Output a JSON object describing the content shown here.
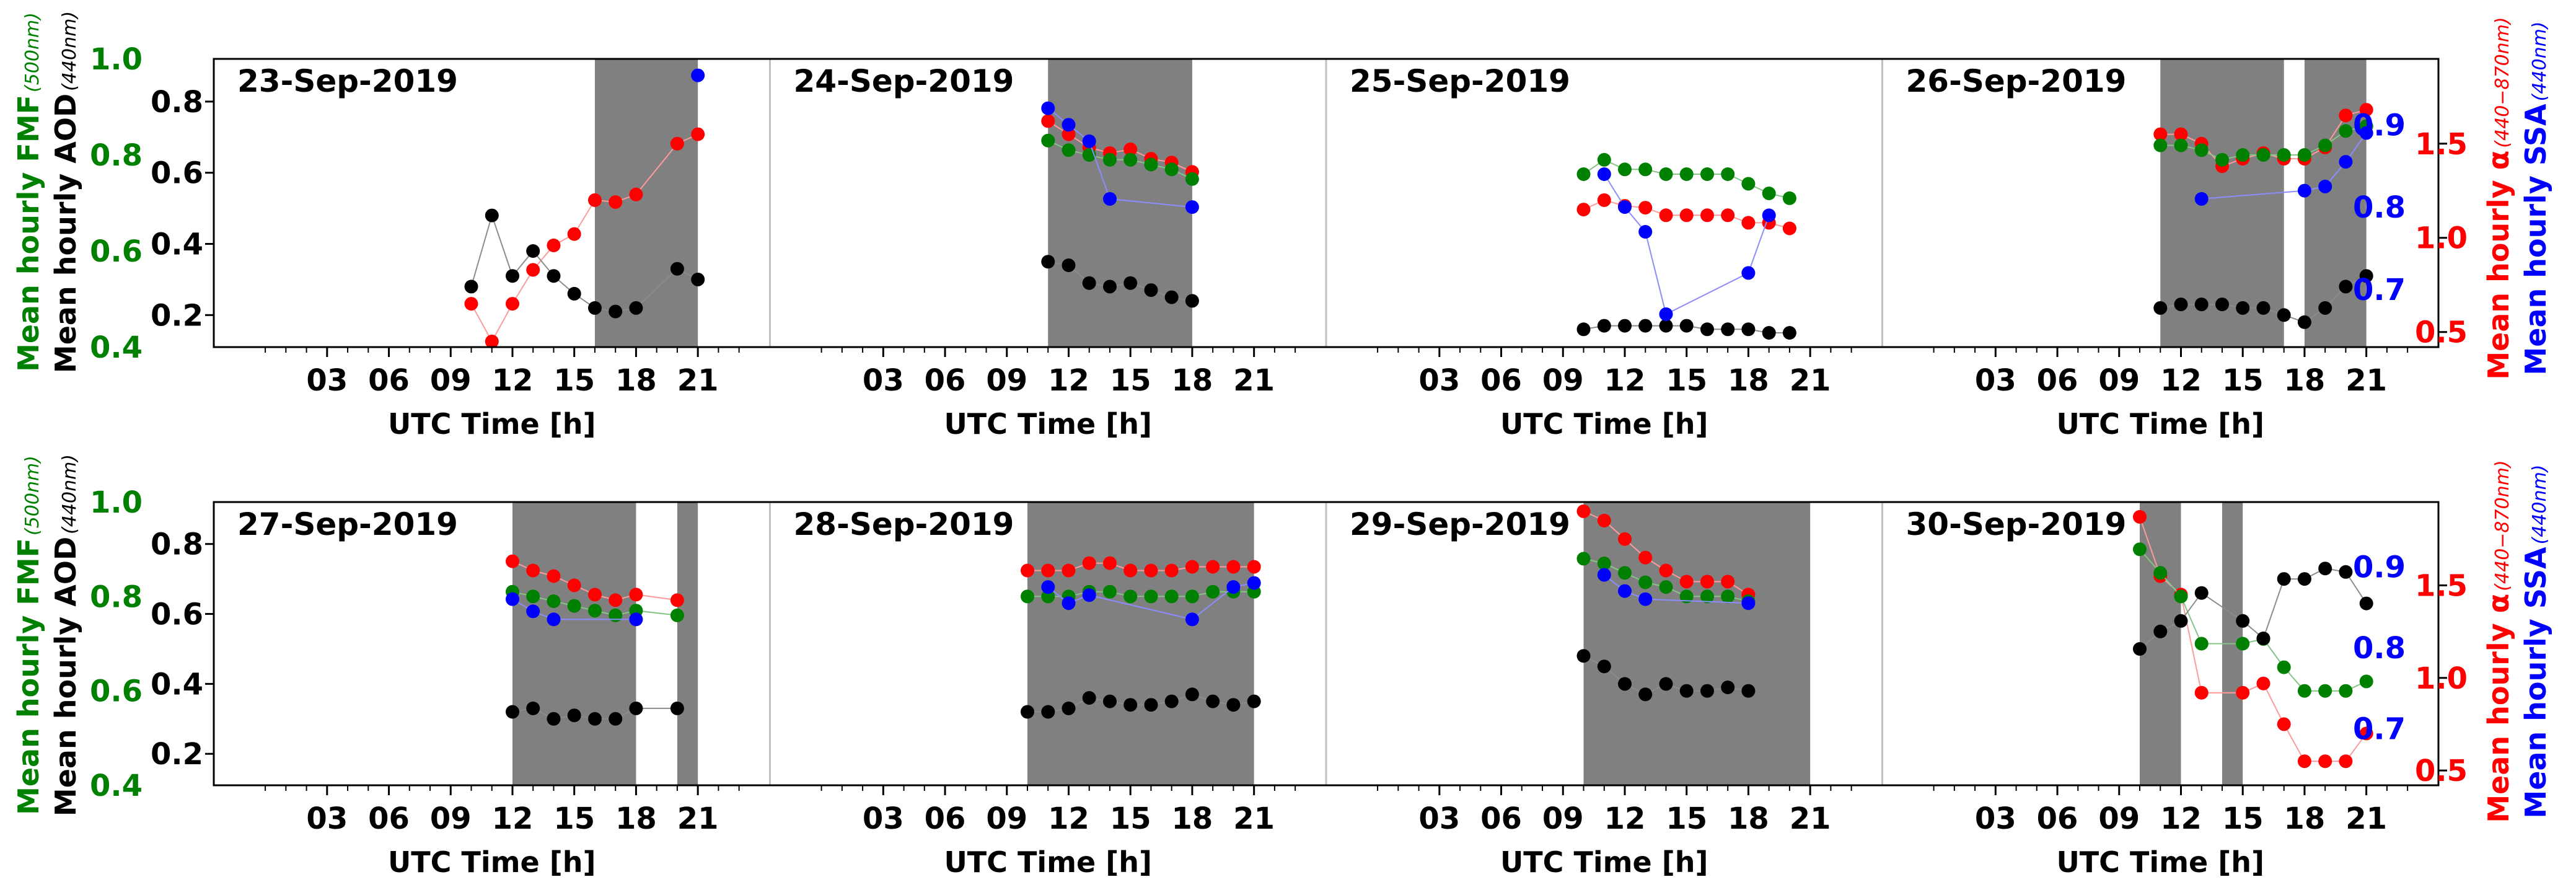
{
  "colors": {
    "fmf": "#008000",
    "aod": "#000000",
    "alpha": "#ff0000",
    "ssa": "#0000ff",
    "night": "#808080",
    "separator": "#c0c0c0",
    "axis": "#000000"
  },
  "chart_data": {
    "type": "scatter",
    "title": "",
    "x_label": "UTC Time [h]",
    "x_ticks": [
      "03",
      "06",
      "09",
      "12",
      "15",
      "18",
      "21"
    ],
    "x_range": [
      -2.5,
      24.5
    ],
    "left_axes": {
      "fmf": {
        "label": "Mean hourly FMF",
        "subscript": "(500nm)",
        "range": [
          0.4,
          1.0
        ],
        "ticks": [
          "0.4",
          "0.6",
          "0.8",
          "1.0"
        ]
      },
      "aod": {
        "label": "Mean hourly AOD",
        "subscript": "(440nm)",
        "range": [
          0.11,
          0.92
        ],
        "ticks": [
          "0.2",
          "0.4",
          "0.6",
          "0.8"
        ]
      }
    },
    "right_axes": {
      "alpha": {
        "label": "Mean hourly α",
        "subscript": "(440−870nm)",
        "range": [
          0.42,
          1.95
        ],
        "ticks": [
          "0.5",
          "1.0",
          "1.5"
        ]
      },
      "ssa": {
        "label": "Mean hourly SSA",
        "subscript": "(440nm)",
        "range": [
          0.63,
          0.98
        ],
        "ticks": [
          "0.7",
          "0.8",
          "0.9"
        ]
      }
    },
    "rows": [
      {
        "panels": [
          {
            "date": "23-Sep-2019",
            "shaded": [
              [
                16,
                21
              ]
            ],
            "hours": [
              10,
              11,
              12,
              13,
              14,
              15,
              16,
              17,
              18,
              20,
              21
            ],
            "fmf": [
              null,
              null,
              null,
              null,
              null,
              null,
              null,
              null,
              null,
              null,
              null
            ],
            "aod": [
              0.28,
              0.48,
              0.31,
              0.38,
              0.31,
              0.26,
              0.22,
              0.21,
              0.22,
              0.33,
              0.3
            ],
            "alpha": [
              0.65,
              0.45,
              0.65,
              0.83,
              0.96,
              1.02,
              1.2,
              1.19,
              1.23,
              1.5,
              1.55
            ],
            "ssa": [
              null,
              null,
              null,
              null,
              null,
              null,
              null,
              null,
              null,
              null,
              0.96
            ]
          },
          {
            "date": "24-Sep-2019",
            "shaded": [
              [
                11,
                18
              ]
            ],
            "hours": [
              11,
              12,
              13,
              14,
              15,
              16,
              17,
              18
            ],
            "fmf": [
              0.83,
              0.81,
              0.8,
              0.79,
              0.79,
              0.78,
              0.77,
              0.75
            ],
            "aod": [
              0.35,
              0.34,
              0.29,
              0.28,
              0.29,
              0.27,
              0.25,
              0.24
            ],
            "alpha": [
              1.62,
              1.55,
              1.48,
              1.45,
              1.47,
              1.42,
              1.4,
              1.35
            ],
            "ssa": [
              0.92,
              0.9,
              0.88,
              0.81,
              null,
              null,
              null,
              0.8
            ]
          },
          {
            "date": "25-Sep-2019",
            "shaded": [],
            "hours": [
              10,
              11,
              12,
              13,
              14,
              15,
              16,
              17,
              18,
              19,
              20
            ],
            "fmf": [
              0.76,
              0.79,
              0.77,
              0.77,
              0.76,
              0.76,
              0.76,
              0.76,
              0.74,
              0.72,
              0.71
            ],
            "aod": [
              0.16,
              0.17,
              0.17,
              0.17,
              0.17,
              0.17,
              0.16,
              0.16,
              0.16,
              0.15,
              0.15
            ],
            "alpha": [
              1.15,
              1.2,
              1.17,
              1.16,
              1.12,
              1.12,
              1.12,
              1.12,
              1.08,
              1.08,
              1.05
            ],
            "ssa": [
              null,
              0.84,
              0.8,
              0.77,
              0.67,
              null,
              null,
              null,
              0.72,
              0.79,
              null
            ]
          },
          {
            "date": "26-Sep-2019",
            "shaded": [
              [
                11,
                17
              ],
              [
                18,
                21
              ]
            ],
            "hours": [
              11,
              12,
              13,
              14,
              15,
              16,
              17,
              18,
              19,
              20,
              21
            ],
            "fmf": [
              0.82,
              0.82,
              0.81,
              0.79,
              0.8,
              0.8,
              0.8,
              0.8,
              0.82,
              0.85,
              0.86
            ],
            "aod": [
              0.22,
              0.23,
              0.23,
              0.23,
              0.22,
              0.22,
              0.2,
              0.18,
              0.22,
              0.28,
              0.31
            ],
            "alpha": [
              1.55,
              1.55,
              1.5,
              1.38,
              1.42,
              1.45,
              1.42,
              1.42,
              1.48,
              1.65,
              1.68
            ],
            "ssa": [
              null,
              null,
              0.81,
              null,
              null,
              null,
              null,
              0.82,
              0.825,
              0.855,
              0.89
            ]
          }
        ]
      },
      {
        "panels": [
          {
            "date": "27-Sep-2019",
            "shaded": [
              [
                12,
                18
              ],
              [
                20,
                21
              ]
            ],
            "hours": [
              12,
              13,
              14,
              15,
              16,
              17,
              18,
              20
            ],
            "fmf": [
              0.81,
              0.8,
              0.79,
              0.78,
              0.77,
              0.76,
              0.77,
              0.76
            ],
            "aod": [
              0.32,
              0.33,
              0.3,
              0.31,
              0.3,
              0.3,
              0.33,
              0.33
            ],
            "alpha": [
              1.63,
              1.58,
              1.55,
              1.5,
              1.45,
              1.42,
              1.45,
              1.42
            ],
            "ssa": [
              0.86,
              0.845,
              0.835,
              null,
              null,
              null,
              0.835,
              null
            ]
          },
          {
            "date": "28-Sep-2019",
            "shaded": [
              [
                10,
                21
              ]
            ],
            "hours": [
              10,
              11,
              12,
              13,
              14,
              15,
              16,
              17,
              18,
              19,
              20,
              21
            ],
            "fmf": [
              0.8,
              0.8,
              0.8,
              0.81,
              0.81,
              0.8,
              0.8,
              0.8,
              0.8,
              0.81,
              0.81,
              0.81
            ],
            "aod": [
              0.32,
              0.32,
              0.33,
              0.36,
              0.35,
              0.34,
              0.34,
              0.35,
              0.37,
              0.35,
              0.34,
              0.35
            ],
            "alpha": [
              1.58,
              1.58,
              1.58,
              1.62,
              1.62,
              1.58,
              1.58,
              1.58,
              1.6,
              1.6,
              1.6,
              1.6
            ],
            "ssa": [
              null,
              0.875,
              0.855,
              0.865,
              null,
              null,
              null,
              null,
              0.835,
              null,
              0.875,
              0.88
            ]
          },
          {
            "date": "29-Sep-2019",
            "shaded": [
              [
                10,
                21
              ]
            ],
            "hours": [
              10,
              11,
              12,
              13,
              14,
              15,
              16,
              17,
              18
            ],
            "fmf": [
              0.88,
              0.87,
              0.85,
              0.83,
              0.82,
              0.8,
              0.8,
              0.8,
              0.79
            ],
            "aod": [
              0.48,
              0.45,
              0.4,
              0.37,
              0.4,
              0.38,
              0.38,
              0.39,
              0.38
            ],
            "alpha": [
              1.9,
              1.85,
              1.75,
              1.65,
              1.58,
              1.52,
              1.52,
              1.52,
              1.45
            ],
            "ssa": [
              null,
              0.89,
              0.87,
              0.86,
              null,
              null,
              null,
              null,
              0.855
            ]
          },
          {
            "date": "30-Sep-2019",
            "shaded": [
              [
                10,
                12
              ],
              [
                14,
                15
              ]
            ],
            "hours": [
              10,
              11,
              12,
              13,
              15,
              16,
              17,
              18,
              19,
              20,
              21
            ],
            "fmf": [
              0.9,
              0.85,
              0.8,
              0.7,
              0.7,
              0.71,
              0.65,
              0.6,
              0.6,
              0.6,
              0.62
            ],
            "aod": [
              0.5,
              0.55,
              0.58,
              0.66,
              0.58,
              0.53,
              0.7,
              0.7,
              0.73,
              0.72,
              0.63
            ],
            "alpha": [
              1.87,
              1.55,
              1.45,
              0.92,
              0.92,
              0.97,
              0.75,
              0.55,
              0.55,
              0.55,
              0.7
            ],
            "ssa": [
              null,
              null,
              null,
              null,
              null,
              null,
              null,
              null,
              null,
              null,
              null
            ]
          }
        ]
      }
    ]
  }
}
